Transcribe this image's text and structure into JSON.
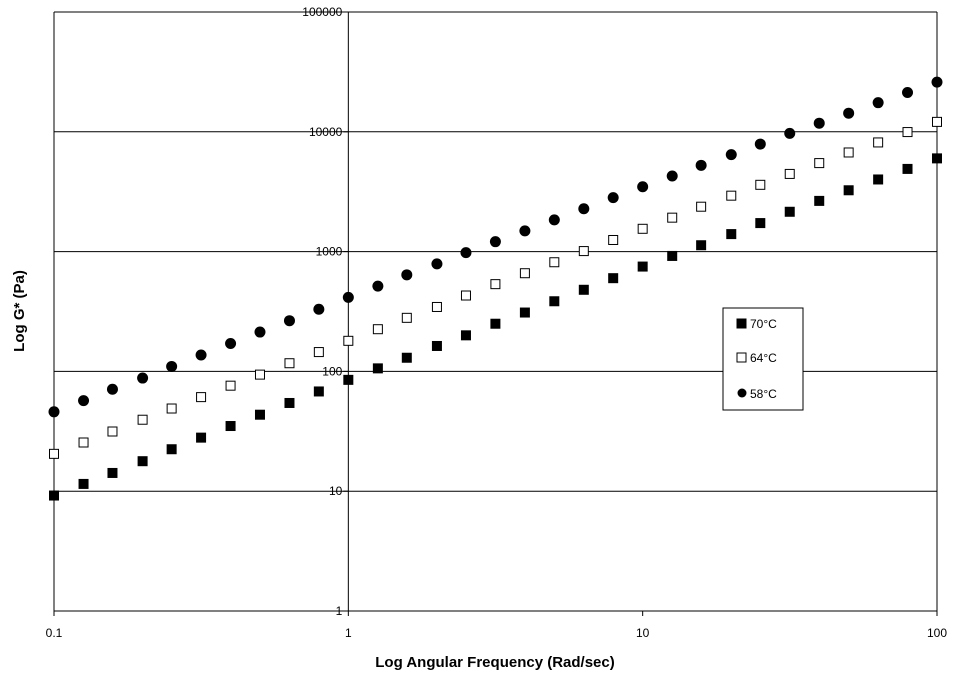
{
  "chart_data": {
    "type": "scatter",
    "title": "",
    "xlabel": "Log Angular Frequency (Rad/sec)",
    "ylabel": "Log G* (Pa)",
    "x_scale": "log",
    "y_scale": "log",
    "xlim": [
      0.1,
      100
    ],
    "ylim": [
      1,
      100000
    ],
    "x_ticks": [
      "0.1",
      "1",
      "10",
      "100"
    ],
    "y_ticks": [
      "1",
      "10",
      "100",
      "1000",
      "10000",
      "100000"
    ],
    "grid": "horizontal",
    "legend_position": "right-center",
    "x": [
      0.1,
      0.126,
      0.158,
      0.2,
      0.251,
      0.316,
      0.398,
      0.501,
      0.631,
      0.794,
      1.0,
      1.26,
      1.58,
      2.0,
      2.51,
      3.16,
      3.98,
      5.01,
      6.31,
      7.94,
      10.0,
      12.6,
      15.8,
      20.0,
      25.1,
      31.6,
      39.8,
      50.1,
      63.1,
      79.4,
      100.0
    ],
    "series": [
      {
        "name": "70°C",
        "marker": "filled-square",
        "values": [
          9.2,
          11.5,
          14.2,
          17.8,
          22.4,
          28,
          35,
          43.5,
          54.5,
          68,
          85,
          106,
          130,
          163,
          200,
          250,
          310,
          385,
          480,
          600,
          750,
          920,
          1130,
          1400,
          1730,
          2150,
          2650,
          3250,
          4000,
          4900,
          6000
        ]
      },
      {
        "name": "64°C",
        "marker": "open-square",
        "values": [
          20.5,
          25.5,
          31.5,
          39.5,
          49,
          61,
          76,
          94,
          117,
          145,
          180,
          225,
          280,
          345,
          430,
          535,
          660,
          815,
          1010,
          1250,
          1550,
          1920,
          2370,
          2930,
          3610,
          4450,
          5480,
          6720,
          8150,
          9950,
          12100
        ]
      },
      {
        "name": "58°C",
        "marker": "filled-circle",
        "values": [
          46,
          57,
          71,
          88,
          110,
          137,
          171,
          213,
          265,
          330,
          415,
          515,
          640,
          790,
          980,
          1210,
          1490,
          1840,
          2280,
          2820,
          3480,
          4280,
          5250,
          6450,
          7900,
          9700,
          11800,
          14300,
          17500,
          21300,
          26000
        ]
      }
    ]
  }
}
